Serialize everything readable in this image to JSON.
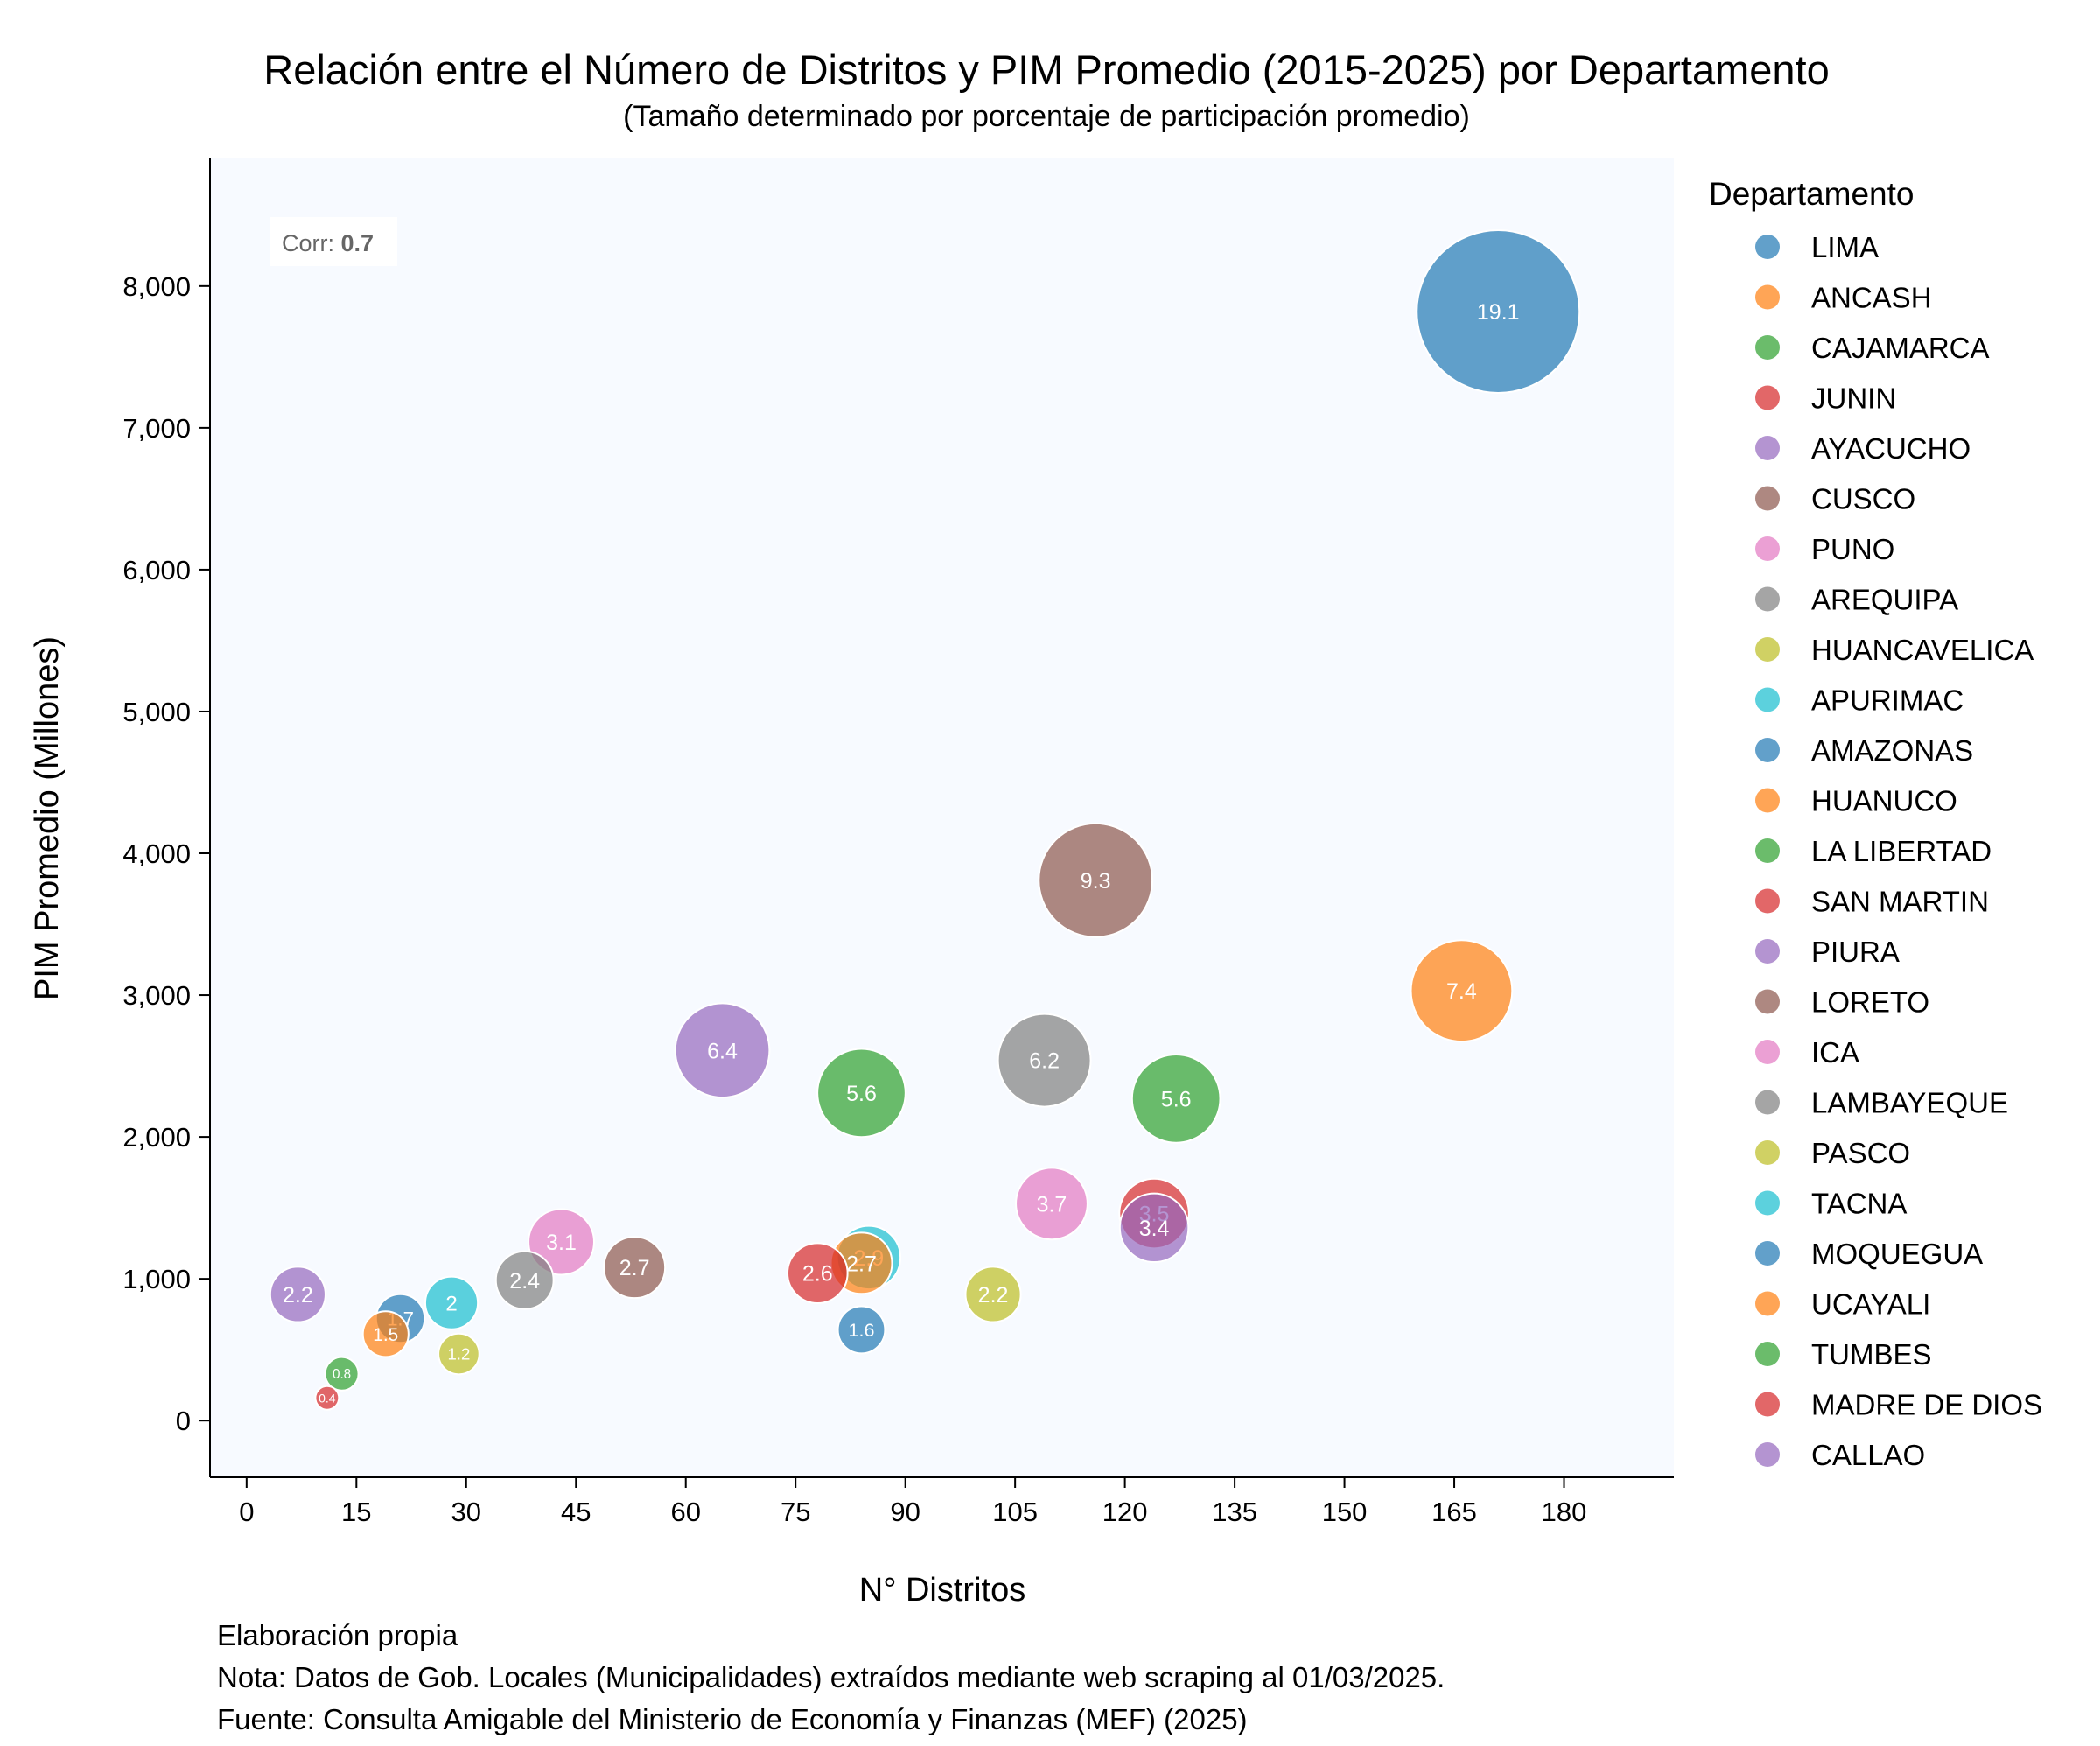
{
  "chart_data": {
    "type": "scatter",
    "title": "Relación entre el Número de Distritos y PIM Promedio (2015-2025) por Departamento",
    "subtitle": "(Tamaño determinado por porcentaje de participación promedio)",
    "xlabel": "N° Distritos",
    "ylabel": "PIM Promedio (Millones)",
    "xlim": [
      -5,
      195
    ],
    "ylim": [
      -400,
      8900
    ],
    "x_ticks": [
      0,
      15,
      30,
      45,
      60,
      75,
      90,
      105,
      120,
      135,
      150,
      165,
      180
    ],
    "x_tick_labels": [
      "0",
      "15",
      "30",
      "45",
      "60",
      "75",
      "90",
      "105",
      "120",
      "135",
      "150",
      "165",
      "180"
    ],
    "y_ticks": [
      0,
      1000,
      2000,
      3000,
      4000,
      5000,
      6000,
      7000,
      8000
    ],
    "y_tick_labels": [
      "0",
      "1,000",
      "2,000",
      "3,000",
      "4,000",
      "5,000",
      "6,000",
      "7,000",
      "8,000"
    ],
    "grid": false,
    "legend_title": "Departamento",
    "legend_position": "outside-right",
    "annotation": {
      "prefix": "Corr: ",
      "value": "0.7"
    },
    "size_encoding": "participation_percent",
    "series": [
      {
        "name": "LIMA",
        "color": "#1f77b4",
        "x": 171,
        "y": 7820,
        "size": 19.1,
        "label": "19.1"
      },
      {
        "name": "ANCASH",
        "color": "#ff7f0e",
        "x": 166,
        "y": 3030,
        "size": 7.4,
        "label": "7.4"
      },
      {
        "name": "CAJAMARCA",
        "color": "#2ca02c",
        "x": 127,
        "y": 2270,
        "size": 5.6,
        "label": "5.6"
      },
      {
        "name": "JUNIN",
        "color": "#d62728",
        "x": 124,
        "y": 1460,
        "size": 3.5,
        "label": "3.5"
      },
      {
        "name": "AYACUCHO",
        "color": "#9467bd",
        "x": 124,
        "y": 1360,
        "size": 3.4,
        "label": "3.4"
      },
      {
        "name": "CUSCO",
        "color": "#8c564b",
        "x": 116,
        "y": 3810,
        "size": 9.3,
        "label": "9.3"
      },
      {
        "name": "PUNO",
        "color": "#e377c2",
        "x": 110,
        "y": 1530,
        "size": 3.7,
        "label": "3.7"
      },
      {
        "name": "AREQUIPA",
        "color": "#7f7f7f",
        "x": 109,
        "y": 2540,
        "size": 6.2,
        "label": "6.2"
      },
      {
        "name": "HUANCAVELICA",
        "color": "#bcbd22",
        "x": 102,
        "y": 890,
        "size": 2.2,
        "label": "2.2"
      },
      {
        "name": "APURIMAC",
        "color": "#17becf",
        "x": 85,
        "y": 1150,
        "size": 2.9,
        "label": "2.9"
      },
      {
        "name": "AMAZONAS",
        "color": "#1f77b4",
        "x": 84,
        "y": 640,
        "size": 1.6,
        "label": "1.6"
      },
      {
        "name": "HUANUCO",
        "color": "#ff7f0e",
        "x": 84,
        "y": 1110,
        "size": 2.7,
        "label": "2.7"
      },
      {
        "name": "LA LIBERTAD",
        "color": "#2ca02c",
        "x": 84,
        "y": 2310,
        "size": 5.6,
        "label": "5.6"
      },
      {
        "name": "SAN MARTIN",
        "color": "#d62728",
        "x": 78,
        "y": 1040,
        "size": 2.6,
        "label": "2.6"
      },
      {
        "name": "PIURA",
        "color": "#9467bd",
        "x": 65,
        "y": 2610,
        "size": 6.4,
        "label": "6.4"
      },
      {
        "name": "LORETO",
        "color": "#8c564b",
        "x": 53,
        "y": 1080,
        "size": 2.7,
        "label": "2.7"
      },
      {
        "name": "ICA",
        "color": "#e377c2",
        "x": 43,
        "y": 1260,
        "size": 3.1,
        "label": "3.1"
      },
      {
        "name": "LAMBAYEQUE",
        "color": "#7f7f7f",
        "x": 38,
        "y": 990,
        "size": 2.4,
        "label": "2.4"
      },
      {
        "name": "PASCO",
        "color": "#bcbd22",
        "x": 29,
        "y": 470,
        "size": 1.2,
        "label": "1.2"
      },
      {
        "name": "TACNA",
        "color": "#17becf",
        "x": 28,
        "y": 830,
        "size": 2.0,
        "label": "2"
      },
      {
        "name": "MOQUEGUA",
        "color": "#1f77b4",
        "x": 21,
        "y": 720,
        "size": 1.7,
        "label": "1.7"
      },
      {
        "name": "UCAYALI",
        "color": "#ff7f0e",
        "x": 19,
        "y": 610,
        "size": 1.5,
        "label": "1.5"
      },
      {
        "name": "TUMBES",
        "color": "#2ca02c",
        "x": 13,
        "y": 330,
        "size": 0.8,
        "label": "0.8"
      },
      {
        "name": "MADRE DE DIOS",
        "color": "#d62728",
        "x": 11,
        "y": 160,
        "size": 0.4,
        "label": "0.4"
      },
      {
        "name": "CALLAO",
        "color": "#9467bd",
        "x": 7,
        "y": 890,
        "size": 2.2,
        "label": "2.2"
      }
    ]
  },
  "footnotes": {
    "line1": "Elaboración propia",
    "line2": "Nota: Datos de Gob. Locales (Municipalidades) extraídos mediante web scraping al 01/03/2025.",
    "line3": "Fuente: Consulta Amigable del Ministerio de Economía y Finanzas (MEF) (2025)"
  }
}
